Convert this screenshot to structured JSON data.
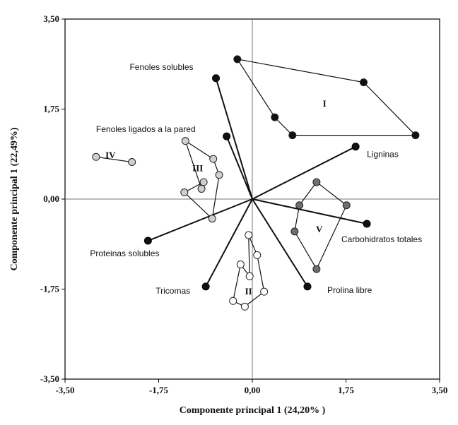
{
  "chart_data": {
    "type": "scatter",
    "title": "",
    "xlabel": "Componente principal 1 (24,20% )",
    "ylabel": "Componente principal 1 (22,49%)",
    "xlim": [
      -3.5,
      3.5
    ],
    "ylim": [
      -3.5,
      3.5
    ],
    "x_ticks": [
      {
        "value": -3.5,
        "label": "-3,50"
      },
      {
        "value": -1.75,
        "label": "-1,75"
      },
      {
        "value": 0,
        "label": "0,00"
      },
      {
        "value": 1.75,
        "label": "1,75"
      },
      {
        "value": 3.5,
        "label": "3,50"
      }
    ],
    "y_ticks": [
      {
        "value": 3.5,
        "label": "3,50"
      },
      {
        "value": 1.75,
        "label": "1,75"
      },
      {
        "value": 0,
        "label": "0,00"
      },
      {
        "value": -1.75,
        "label": "-1,75"
      },
      {
        "value": -3.5,
        "label": "-3,50"
      }
    ],
    "grid": false,
    "vectors": [
      {
        "label": "Fenoles solubles",
        "x": -0.68,
        "y": 2.35
      },
      {
        "label": "Fenoles ligados a la pared",
        "x": -0.48,
        "y": 1.22
      },
      {
        "label": "Ligninas",
        "x": 1.93,
        "y": 1.02
      },
      {
        "label": "Carbohidratos totales",
        "x": 2.14,
        "y": -0.48
      },
      {
        "label": "Prolina libre",
        "x": 1.03,
        "y": -1.7
      },
      {
        "label": "Tricomas",
        "x": -0.87,
        "y": -1.7
      },
      {
        "label": "Proteinas solubles",
        "x": -1.95,
        "y": -0.81
      }
    ],
    "series": [
      {
        "name": "I",
        "marker": "black",
        "label_pos": {
          "x": 1.35,
          "y": 1.85
        },
        "points": [
          {
            "x": -0.28,
            "y": 2.72
          },
          {
            "x": 2.08,
            "y": 2.27
          },
          {
            "x": 3.05,
            "y": 1.24
          },
          {
            "x": 0.75,
            "y": 1.24
          },
          {
            "x": 0.42,
            "y": 1.59
          }
        ]
      },
      {
        "name": "II",
        "marker": "white",
        "label_pos": {
          "x": -0.07,
          "y": -1.8
        },
        "points": [
          {
            "x": -0.07,
            "y": -0.7
          },
          {
            "x": 0.09,
            "y": -1.09
          },
          {
            "x": 0.22,
            "y": -1.8
          },
          {
            "x": -0.14,
            "y": -2.09
          },
          {
            "x": -0.36,
            "y": -1.98
          },
          {
            "x": -0.22,
            "y": -1.27
          },
          {
            "x": -0.05,
            "y": -1.5
          }
        ]
      },
      {
        "name": "III",
        "marker": "light",
        "label_pos": {
          "x": -1.02,
          "y": 0.6
        },
        "points": [
          {
            "x": -1.25,
            "y": 1.13
          },
          {
            "x": -0.73,
            "y": 0.78
          },
          {
            "x": -0.62,
            "y": 0.47
          },
          {
            "x": -0.75,
            "y": -0.38
          },
          {
            "x": -1.27,
            "y": 0.13
          },
          {
            "x": -0.91,
            "y": 0.33
          },
          {
            "x": -0.95,
            "y": 0.2
          }
        ]
      },
      {
        "name": "IV",
        "marker": "light",
        "label_pos": {
          "x": -2.65,
          "y": 0.85
        },
        "points": [
          {
            "x": -2.92,
            "y": 0.82
          },
          {
            "x": -2.25,
            "y": 0.72
          }
        ]
      },
      {
        "name": "V",
        "marker": "gray",
        "label_pos": {
          "x": 1.25,
          "y": -0.59
        },
        "points": [
          {
            "x": 1.2,
            "y": 0.33
          },
          {
            "x": 1.76,
            "y": -0.12
          },
          {
            "x": 1.2,
            "y": -1.36
          },
          {
            "x": 0.79,
            "y": -0.63
          },
          {
            "x": 0.88,
            "y": -0.12
          }
        ]
      }
    ]
  }
}
